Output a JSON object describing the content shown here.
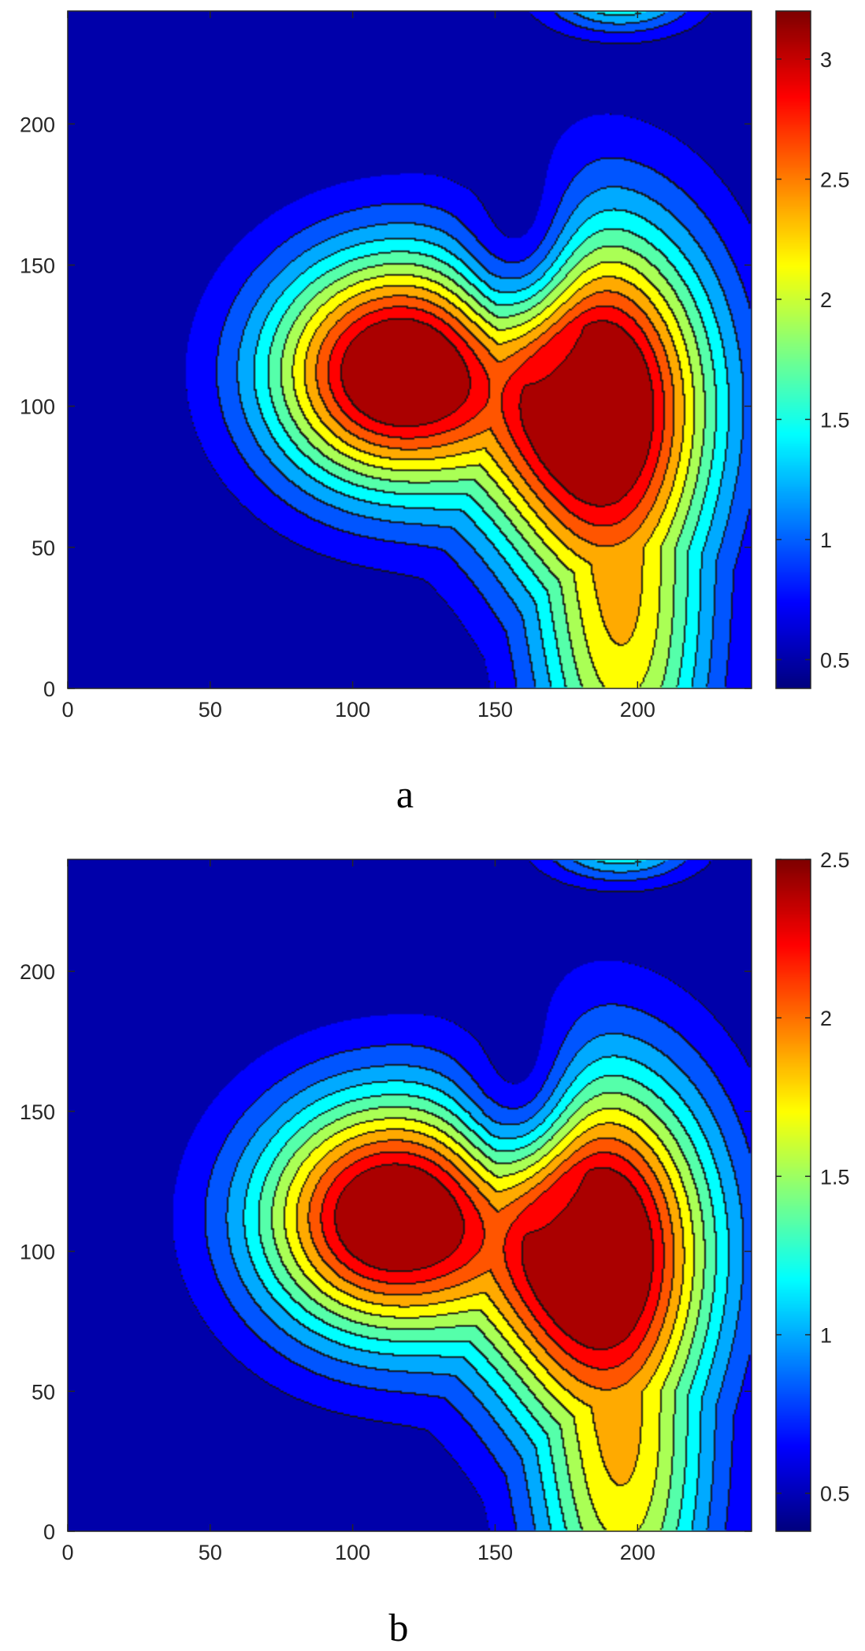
{
  "chart_data": [
    {
      "type": "heatmap",
      "subtype": "filled-contour",
      "panel_label": "a",
      "title": "",
      "xlabel": "",
      "ylabel": "",
      "xlim": [
        0,
        240
      ],
      "ylim": [
        0,
        240
      ],
      "x_ticks": [
        "0",
        "50",
        "100",
        "150",
        "200"
      ],
      "y_ticks": [
        "0",
        "50",
        "100",
        "150",
        "200"
      ],
      "colormap": "jet",
      "colorbar": {
        "range": [
          0.38,
          3.2
        ],
        "ticks": [
          "0.5",
          "1",
          "1.5",
          "2",
          "2.5",
          "3"
        ]
      },
      "levels": 12,
      "features": {
        "peak_value": 3.15,
        "background_value": 0.4,
        "lobes": [
          {
            "x": 115,
            "y": 112,
            "sx": 32,
            "sy": 30,
            "amp": 1.0
          },
          {
            "x": 185,
            "y": 103,
            "sx": 30,
            "sy": 44,
            "amp": 1.0
          },
          {
            "x": 195,
            "y": 15,
            "sx": 22,
            "sy": 50,
            "amp": 0.55
          }
        ],
        "notch": {
          "x": 158,
          "y": 170,
          "sx": 14,
          "sy": 28,
          "amp": 0.95
        },
        "top_blob": {
          "x": 194,
          "y": 245,
          "sx": 18,
          "sy": 9,
          "amp": 0.45
        }
      }
    },
    {
      "type": "heatmap",
      "subtype": "filled-contour",
      "panel_label": "b",
      "title": "",
      "xlabel": "",
      "ylabel": "",
      "xlim": [
        0,
        240
      ],
      "ylim": [
        0,
        240
      ],
      "x_ticks": [
        "0",
        "50",
        "100",
        "150",
        "200"
      ],
      "y_ticks": [
        "0",
        "50",
        "100",
        "150",
        "200"
      ],
      "colormap": "jet",
      "colorbar": {
        "range": [
          0.38,
          2.5
        ],
        "ticks": [
          "0.5",
          "1",
          "1.5",
          "2",
          "2.5"
        ]
      },
      "levels": 12,
      "features": {
        "peak_value": 2.45,
        "background_value": 0.4,
        "lobes": [
          {
            "x": 113,
            "y": 112,
            "sx": 33,
            "sy": 31,
            "amp": 1.0
          },
          {
            "x": 185,
            "y": 103,
            "sx": 30,
            "sy": 44,
            "amp": 1.0
          },
          {
            "x": 195,
            "y": 15,
            "sx": 22,
            "sy": 50,
            "amp": 0.55
          }
        ],
        "notch": {
          "x": 158,
          "y": 170,
          "sx": 14,
          "sy": 28,
          "amp": 0.95
        },
        "top_blob": {
          "x": 194,
          "y": 245,
          "sx": 18,
          "sy": 9,
          "amp": 0.45
        }
      }
    }
  ]
}
